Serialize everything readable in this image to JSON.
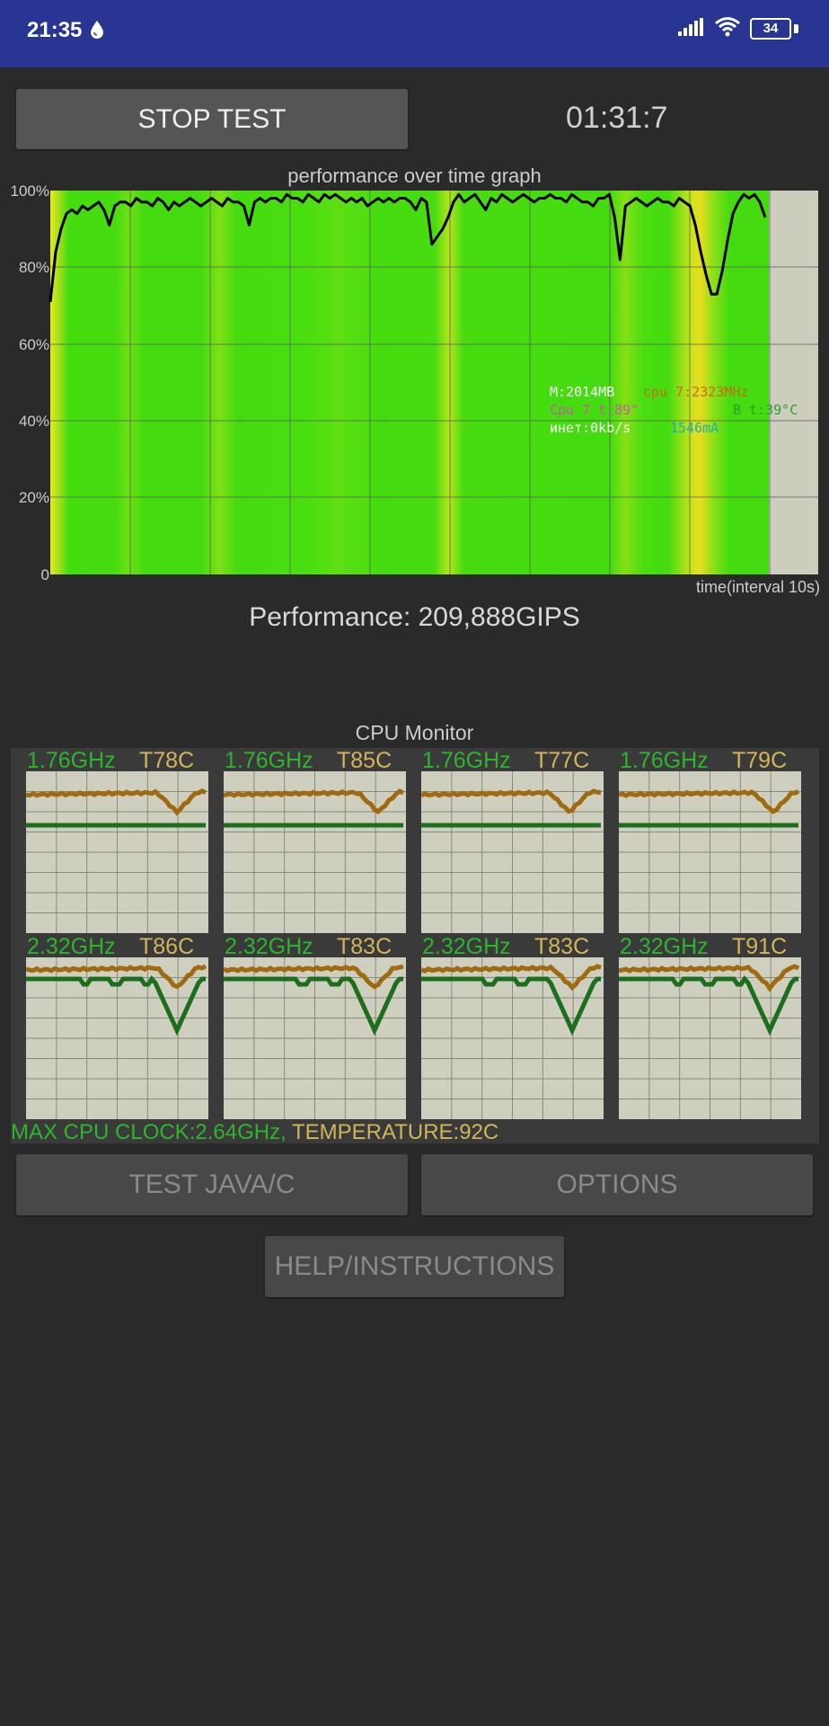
{
  "status_bar": {
    "time": "21:35",
    "battery": "34",
    "icons": [
      "drop-icon",
      "signal-icon",
      "wifi-icon",
      "battery-icon"
    ],
    "color": "#283593"
  },
  "controls": {
    "stop_label": "STOP TEST",
    "timer": "01:31:7"
  },
  "graph": {
    "title": "performance over time graph",
    "y_ticks": [
      "100%",
      "80%",
      "60%",
      "40%",
      "20%",
      "0"
    ],
    "x_label": "time(interval 10s)",
    "overlay": {
      "mem": "M:2014MB",
      "cpu_freq": "cpu 7:2323MHz",
      "cpu_temp": "Cpu 7 t:89°",
      "battery_temp": "B t:39°C",
      "net": "инет:0kb/s",
      "current": "1546mA"
    }
  },
  "chart_data": {
    "type": "line",
    "ylim": [
      0,
      100
    ],
    "grid": true,
    "series": [
      {
        "values": [
          71,
          84,
          90,
          94,
          95,
          94,
          96,
          95,
          96,
          97,
          95,
          91,
          96,
          97,
          97,
          96,
          98,
          97,
          97,
          96,
          98,
          97,
          95,
          97,
          96,
          97,
          98,
          97,
          96,
          97,
          98,
          97,
          96,
          98,
          97,
          97,
          96,
          91,
          97,
          98,
          97,
          98,
          98,
          97,
          99,
          98,
          98,
          97,
          99,
          98,
          97,
          99,
          98,
          99,
          98,
          97,
          98,
          97,
          98,
          96,
          97,
          98,
          97,
          98,
          97,
          98,
          98,
          97,
          95,
          98,
          97,
          86,
          88,
          90,
          93,
          97,
          99,
          97,
          98,
          99,
          97,
          95,
          98,
          97,
          99,
          98,
          97,
          98,
          99,
          98,
          97,
          98,
          98,
          99,
          98,
          98,
          97,
          99,
          98,
          97,
          97,
          96,
          98,
          98,
          99,
          93,
          82,
          96,
          97,
          98,
          97,
          96,
          97,
          98,
          97,
          97,
          96,
          98,
          97,
          96,
          91,
          84,
          78,
          73,
          73,
          79,
          87,
          94,
          97,
          99,
          98,
          99,
          97,
          93
        ]
      }
    ]
  },
  "performance": {
    "text": "Performance: 209,888GIPS"
  },
  "cpu_monitor": {
    "title": "CPU Monitor",
    "cores": [
      {
        "freq": "1.76GHz",
        "temp": "T78C"
      },
      {
        "freq": "1.76GHz",
        "temp": "T85C"
      },
      {
        "freq": "1.76GHz",
        "temp": "T77C"
      },
      {
        "freq": "1.76GHz",
        "temp": "T79C"
      },
      {
        "freq": "2.32GHz",
        "temp": "T86C"
      },
      {
        "freq": "2.32GHz",
        "temp": "T83C"
      },
      {
        "freq": "2.32GHz",
        "temp": "T83C"
      },
      {
        "freq": "2.32GHz",
        "temp": "T91C"
      }
    ],
    "max_clock": "MAX CPU CLOCK:2.64GHz,",
    "max_temp": " TEMPERATURE:92C"
  },
  "buttons": {
    "test_label": "TEST JAVA/C",
    "options_label": "OPTIONS",
    "help_label": "HELP/INSTRUCTIONS"
  },
  "colors": {
    "background": "#2a2a2a",
    "freq_green": "#2db52d",
    "temp_yellow": "#d2b55a",
    "temp_line": "#a06a10",
    "freq_line": "#1c6e1c"
  }
}
